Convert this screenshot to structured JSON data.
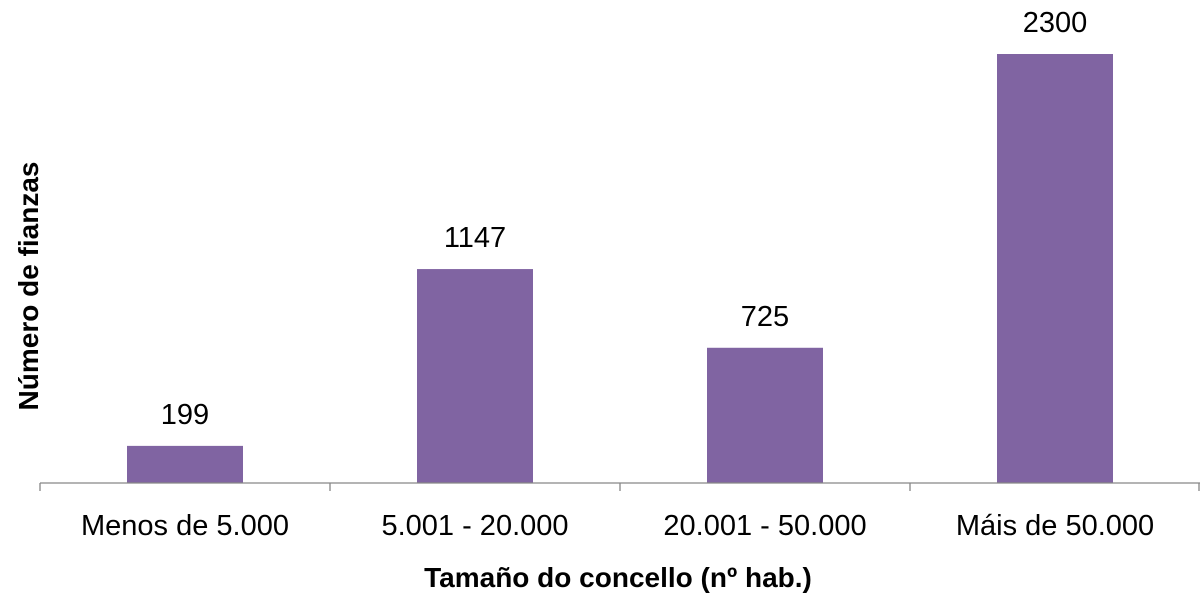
{
  "chart_data": {
    "type": "bar",
    "categories": [
      "Menos de 5.000",
      "5.001 - 20.000",
      "20.001 - 50.000",
      "Máis de 50.000"
    ],
    "values": [
      199,
      1147,
      725,
      2300
    ],
    "data_labels": [
      "199",
      "1147",
      "725",
      "2300"
    ],
    "title": "",
    "xlabel": "Tamaño do concello (nº hab.)",
    "ylabel": "Número de fianzas",
    "ylim": [
      0,
      2300
    ],
    "y_axis_visible": false,
    "grid": false,
    "legend": "none",
    "colors": {
      "bar": "#8064A2",
      "axis": "#868686",
      "text": "#000000"
    }
  }
}
